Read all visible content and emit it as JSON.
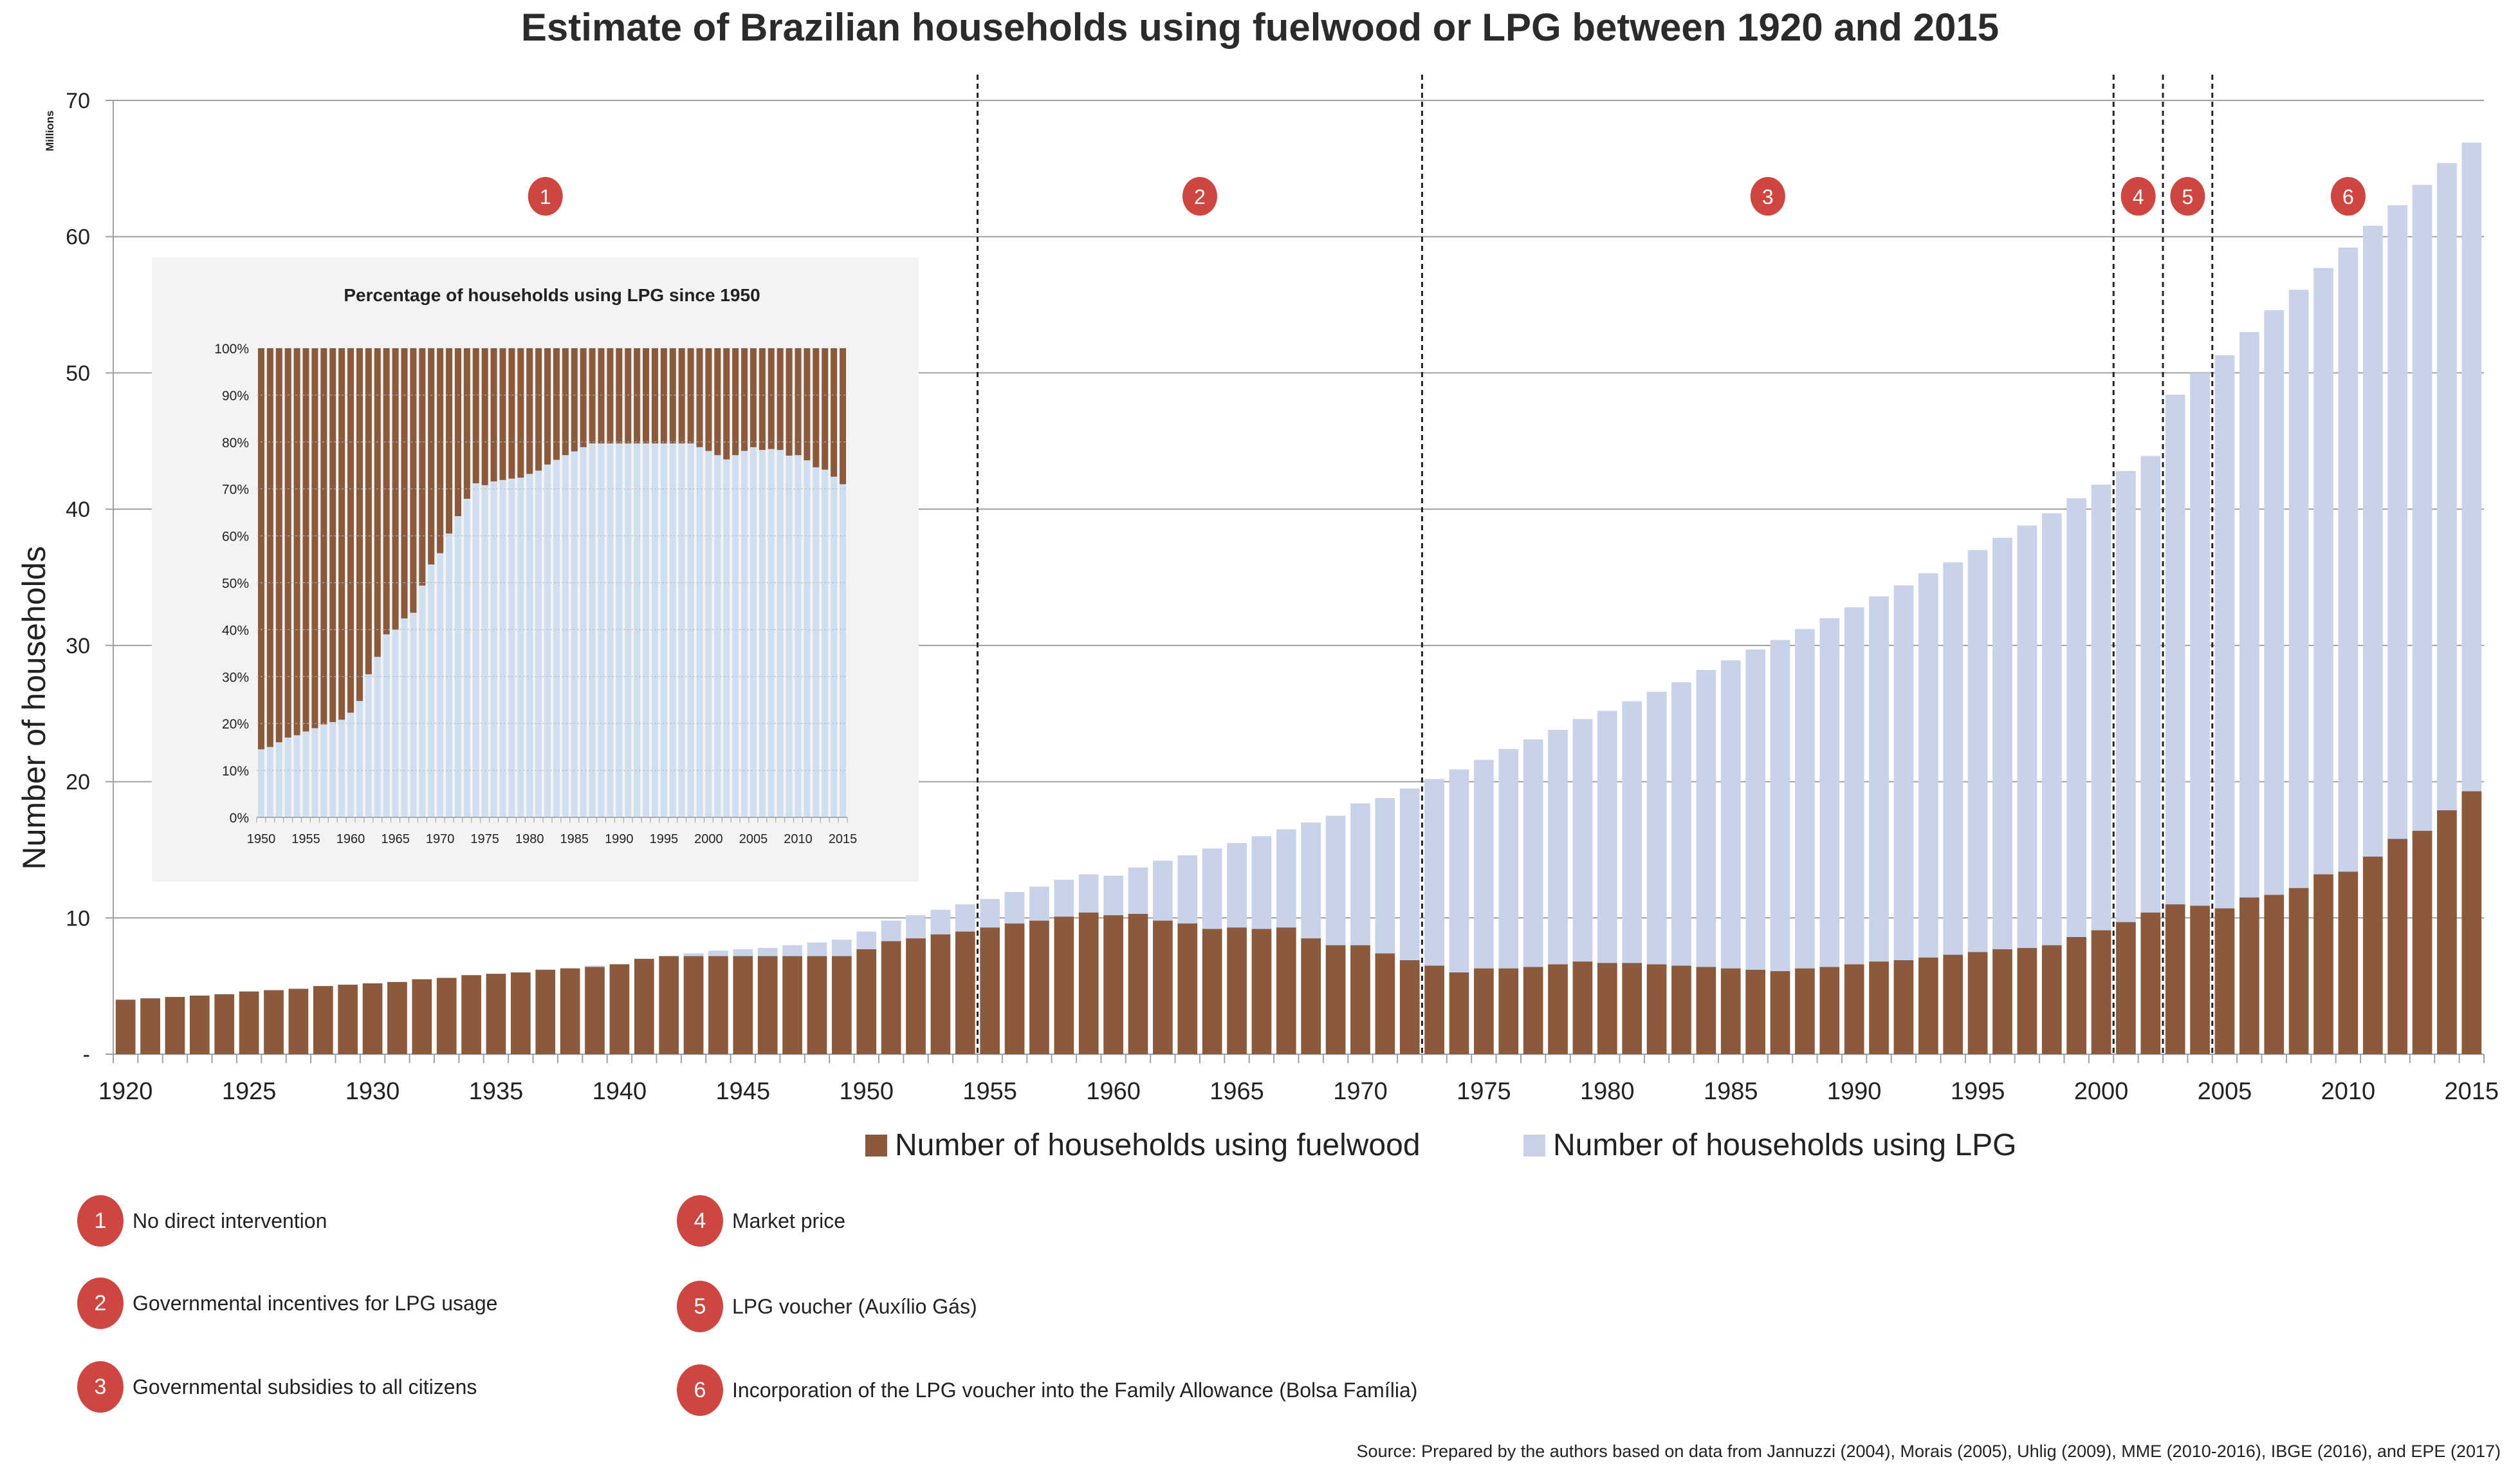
{
  "title": "Estimate of Brazilian households using fuelwood or LPG between 1920 and 2015",
  "chart_data": [
    {
      "type": "bar",
      "stacked": true,
      "title": "Estimate of Brazilian households using fuelwood or LPG between 1920 and 2015",
      "xlabel": "",
      "ylabel": "Number of households",
      "yunit": "Millions",
      "ylim": [
        0,
        70
      ],
      "yticks": [
        0,
        10,
        20,
        30,
        40,
        50,
        60,
        70
      ],
      "ytick_labels": [
        "-",
        "10",
        "20",
        "30",
        "40",
        "50",
        "60",
        "70"
      ],
      "xtick_labels": [
        "1920",
        "1925",
        "1930",
        "1935",
        "1940",
        "1945",
        "1950",
        "1955",
        "1960",
        "1965",
        "1970",
        "1975",
        "1980",
        "1985",
        "1990",
        "1995",
        "2000",
        "2005",
        "2010",
        "2015"
      ],
      "grid": true,
      "legend_position": "bottom",
      "years": [
        1920,
        1921,
        1922,
        1923,
        1924,
        1925,
        1926,
        1927,
        1928,
        1929,
        1930,
        1931,
        1932,
        1933,
        1934,
        1935,
        1936,
        1937,
        1938,
        1939,
        1940,
        1941,
        1942,
        1943,
        1944,
        1945,
        1946,
        1947,
        1948,
        1949,
        1950,
        1951,
        1952,
        1953,
        1954,
        1955,
        1956,
        1957,
        1958,
        1959,
        1960,
        1961,
        1962,
        1963,
        1964,
        1965,
        1966,
        1967,
        1968,
        1969,
        1970,
        1971,
        1972,
        1973,
        1974,
        1975,
        1976,
        1977,
        1978,
        1979,
        1980,
        1981,
        1982,
        1983,
        1984,
        1985,
        1986,
        1987,
        1988,
        1989,
        1990,
        1991,
        1992,
        1993,
        1994,
        1995,
        1996,
        1997,
        1998,
        1999,
        2000,
        2001,
        2002,
        2003,
        2004,
        2005,
        2006,
        2007,
        2008,
        2009,
        2010,
        2011,
        2012,
        2013,
        2014,
        2015
      ],
      "series": [
        {
          "name": "Number of households using fuelwood",
          "color": "#8b5a3c",
          "values": [
            4.0,
            4.1,
            4.2,
            4.3,
            4.4,
            4.6,
            4.7,
            4.8,
            5.0,
            5.1,
            5.2,
            5.3,
            5.5,
            5.6,
            5.8,
            5.9,
            6.0,
            6.2,
            6.3,
            6.4,
            6.6,
            7.0,
            7.2,
            7.2,
            7.2,
            7.2,
            7.2,
            7.2,
            7.2,
            7.2,
            7.7,
            8.3,
            8.5,
            8.8,
            9.0,
            9.3,
            9.6,
            9.8,
            10.1,
            10.4,
            10.2,
            10.3,
            9.8,
            9.6,
            9.2,
            9.3,
            9.2,
            9.3,
            8.5,
            8.0,
            8.0,
            7.4,
            6.9,
            6.5,
            6.0,
            6.3,
            6.3,
            6.4,
            6.6,
            6.8,
            6.7,
            6.7,
            6.6,
            6.5,
            6.4,
            6.3,
            6.2,
            6.1,
            6.3,
            6.4,
            6.6,
            6.8,
            6.9,
            7.1,
            7.3,
            7.5,
            7.7,
            7.8,
            8.0,
            8.6,
            9.1,
            9.7,
            10.4,
            11.0,
            10.9,
            10.7,
            11.5,
            11.7,
            12.2,
            13.2,
            13.4,
            14.5,
            15.8,
            16.4,
            17.9,
            19.3
          ]
        },
        {
          "name": "Number of households using LPG",
          "color": "#c8d3ea",
          "values": [
            0,
            0,
            0,
            0,
            0,
            0,
            0,
            0,
            0,
            0,
            0,
            0,
            0,
            0,
            0,
            0,
            0,
            0,
            0,
            0.1,
            0,
            0,
            0,
            0.2,
            0.4,
            0.5,
            0.6,
            0.8,
            1.0,
            1.2,
            1.3,
            1.5,
            1.7,
            1.8,
            2.0,
            2.1,
            2.3,
            2.5,
            2.7,
            2.8,
            2.9,
            3.4,
            4.4,
            5.0,
            5.9,
            6.2,
            6.8,
            7.2,
            8.5,
            9.5,
            10.4,
            11.4,
            12.6,
            13.7,
            14.9,
            15.3,
            16.1,
            16.7,
            17.2,
            17.8,
            18.5,
            19.2,
            20.0,
            20.8,
            21.8,
            22.6,
            23.5,
            24.3,
            24.9,
            25.6,
            26.2,
            26.8,
            27.5,
            28.2,
            28.8,
            29.5,
            30.2,
            31.0,
            31.7,
            32.2,
            32.7,
            33.1,
            33.5,
            37.4,
            39.1,
            40.6,
            41.5,
            42.9,
            43.9,
            44.5,
            45.8,
            46.3,
            46.5,
            47.4,
            47.5,
            47.6
          ]
        }
      ],
      "period_boundaries_after_year": [
        1954,
        1972,
        2000,
        2002,
        2004
      ],
      "period_markers": [
        {
          "id": "1",
          "center_year": 1937
        },
        {
          "id": "2",
          "center_year": 1963.5
        },
        {
          "id": "3",
          "center_year": 1986.5
        },
        {
          "id": "4",
          "center_year": 2001.5
        },
        {
          "id": "5",
          "center_year": 2003.5
        },
        {
          "id": "6",
          "center_year": 2010
        }
      ]
    },
    {
      "type": "bar",
      "stacked": true,
      "percent": true,
      "title": "Percentage of households using LPG since 1950",
      "ylim": [
        0,
        100
      ],
      "ytick_labels": [
        "0%",
        "10%",
        "20%",
        "30%",
        "40%",
        "50%",
        "60%",
        "70%",
        "80%",
        "90%",
        "100%"
      ],
      "xtick_labels": [
        "1950",
        "1955",
        "1960",
        "1965",
        "1970",
        "1975",
        "1980",
        "1985",
        "1990",
        "1995",
        "2000",
        "2005",
        "2010",
        "2015"
      ],
      "grid": true,
      "years_start": 1950,
      "series": [
        {
          "name": "LPG share (%)",
          "color": "#cfdff0",
          "values": [
            14.5,
            15.0,
            16.0,
            17.0,
            17.5,
            18.3,
            19.0,
            19.8,
            20.3,
            20.8,
            22.3,
            24.8,
            30.5,
            34.2,
            39.0,
            40.0,
            42.4,
            43.6,
            49.4,
            53.9,
            56.3,
            60.5,
            64.2,
            67.9,
            71.2,
            70.8,
            71.6,
            71.9,
            72.2,
            72.4,
            73.2,
            73.9,
            75.2,
            76.2,
            77.2,
            78.0,
            78.9,
            79.7,
            79.7,
            79.7,
            79.7,
            79.7,
            79.7,
            79.7,
            79.7,
            79.7,
            79.7,
            79.7,
            79.7,
            78.9,
            78.1,
            77.2,
            76.3,
            77.2,
            78.1,
            78.9,
            78.3,
            78.5,
            78.3,
            77.1,
            77.2,
            76.1,
            74.6,
            74.1,
            72.6,
            71.0
          ]
        },
        {
          "name": "Fuelwood share (%)",
          "color": "#8b5a3c",
          "values": "remainder to 100%"
        }
      ]
    }
  ],
  "legend": {
    "fuelwood_label": "Number of households using fuelwood",
    "lpg_label": "Number of households using LPG"
  },
  "axis": {
    "ylabel": "Number of households",
    "yunit": "Millions"
  },
  "notes": [
    {
      "id": "1",
      "text": "No direct intervention"
    },
    {
      "id": "2",
      "text": "Governmental incentives for LPG usage"
    },
    {
      "id": "3",
      "text": "Governmental subsidies to all citizens"
    },
    {
      "id": "4",
      "text": "Market price"
    },
    {
      "id": "5",
      "text": "LPG voucher (Auxílio Gás)"
    },
    {
      "id": "6",
      "text": "Incorporation of the LPG voucher into the Family Allowance (Bolsa Família)"
    }
  ],
  "source": "Source: Prepared by the authors based on data from Jannuzzi (2004), Morais (2005), Uhlig (2009), MME (2010-2016), IBGE (2016), and EPE (2017)",
  "colors": {
    "fuelwood": "#8b5a3c",
    "lpg": "#c8d3ea",
    "lpg_inset": "#cfdff0",
    "marker": "#cf4640",
    "grid": "#a0a0a0"
  }
}
